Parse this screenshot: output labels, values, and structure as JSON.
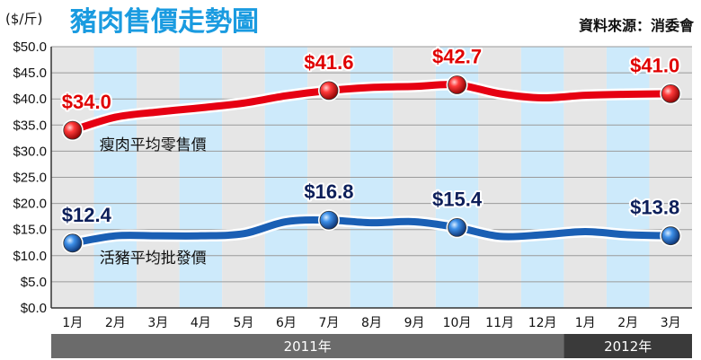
{
  "title": "豬肉售價走勢圖",
  "unit_label": "($/斤)",
  "source": "資料來源：消委會",
  "colors": {
    "stripe_blue": "#cdeafb",
    "stripe_gray": "#e6e6e6",
    "red_line": "#e60012",
    "blue_line": "#1a5fb4",
    "year_2011": "#6b6b6b",
    "year_2012": "#3a3a3a",
    "title": "#1a9be0"
  },
  "chart_data": {
    "type": "line",
    "title": "豬肉售價走勢圖",
    "ylabel": "($/斤)",
    "ylim": [
      0,
      50
    ],
    "y_ticks": [
      "$0.0",
      "$5.0",
      "$10.0",
      "$15.0",
      "$20.0",
      "$25.0",
      "$30.0",
      "$35.0",
      "$40.0",
      "$45.0",
      "$50.0"
    ],
    "categories": [
      "1月",
      "2月",
      "3月",
      "4月",
      "5月",
      "6月",
      "7月",
      "8月",
      "9月",
      "10月",
      "11月",
      "12月",
      "1月",
      "2月",
      "3月"
    ],
    "years": [
      {
        "label": "2011年",
        "start": 0,
        "end": 11
      },
      {
        "label": "2012年",
        "start": 12,
        "end": 14
      }
    ],
    "series": [
      {
        "name": "瘦肉平均零售價",
        "color": "#e60012",
        "values": [
          34.0,
          36.5,
          37.5,
          38.3,
          39.2,
          40.6,
          41.6,
          42.2,
          42.4,
          42.7,
          41.0,
          40.2,
          40.7,
          40.9,
          41.0
        ],
        "labels": [
          {
            "index": 0,
            "text": "$34.0"
          },
          {
            "index": 6,
            "text": "$41.6"
          },
          {
            "index": 9,
            "text": "$42.7"
          },
          {
            "index": 14,
            "text": "$41.0"
          }
        ]
      },
      {
        "name": "活豬平均批發價",
        "color": "#1a5fb4",
        "values": [
          12.4,
          13.8,
          13.8,
          13.8,
          14.2,
          16.5,
          16.8,
          16.3,
          16.5,
          15.4,
          13.7,
          14.0,
          14.6,
          14.0,
          13.8
        ],
        "labels": [
          {
            "index": 0,
            "text": "$12.4"
          },
          {
            "index": 6,
            "text": "$16.8"
          },
          {
            "index": 9,
            "text": "$15.4"
          },
          {
            "index": 14,
            "text": "$13.8"
          }
        ]
      }
    ]
  }
}
